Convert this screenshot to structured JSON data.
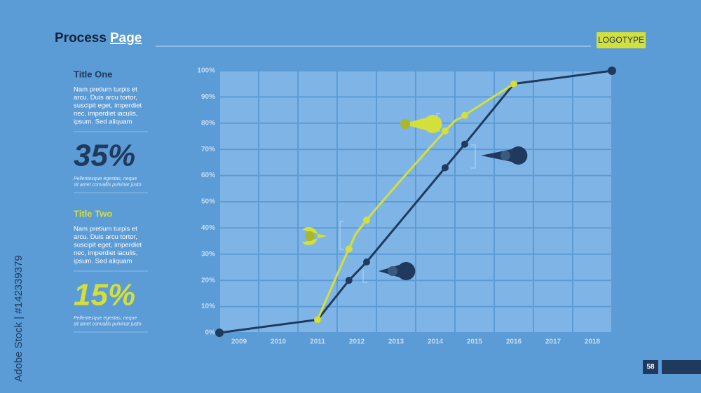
{
  "header": {
    "title": "Process",
    "title_accent": "Page",
    "logo": "LOGOTYPE"
  },
  "sidebar": [
    {
      "title": "Title One",
      "text": [
        "Nam pretium turpis et",
        "arcu. Duis arcu tortor,",
        "suscipit eget, imperdiet",
        "nec, imperdiet iaculis,",
        "ipsum. Sed aliquam"
      ],
      "stat": "35%",
      "caption": [
        "Pellentesque egestas, neque",
        "sit amet convallis pulvinar justo"
      ]
    },
    {
      "title": "Title Two",
      "text": [
        "Nam pretium turpis et",
        "arcu. Duis arcu tortor,",
        "suscipit eget, imperdiet",
        "nec, imperdiet iaculis,",
        "ipsum. Sed aliquam"
      ],
      "stat": "15%",
      "caption": [
        "Pellentesque egestas, neque",
        "sit amet convallis pulvinar justo"
      ]
    }
  ],
  "chart_data": {
    "type": "line",
    "x": [
      2008.5,
      2011,
      2011.8,
      2012.25,
      2014.25,
      2014.75,
      2016,
      2018.5
    ],
    "xlim": [
      2008.5,
      2018.5
    ],
    "xticks": [
      2009,
      2010,
      2011,
      2012,
      2013,
      2014,
      2015,
      2016,
      2017,
      2018
    ],
    "ylim": [
      0,
      100
    ],
    "yticks": [
      {
        "value": 0,
        "label": "0%"
      },
      {
        "value": 10,
        "label": "10%"
      },
      {
        "value": 20,
        "label": "20%"
      },
      {
        "value": 30,
        "label": "30%"
      },
      {
        "value": 40,
        "label": "40%"
      },
      {
        "value": 50,
        "label": "50%"
      },
      {
        "value": 60,
        "label": "60%"
      },
      {
        "value": 70,
        "label": "70%"
      },
      {
        "value": 80,
        "label": "80%"
      },
      {
        "value": 90,
        "label": "90%"
      },
      {
        "value": 100,
        "label": "100%"
      }
    ],
    "grid": true,
    "series": [
      {
        "color": "#1f3a5c",
        "values": [
          0,
          5,
          20,
          27,
          63,
          72,
          95,
          100
        ]
      },
      {
        "color": "#d3e03c",
        "values": [
          null,
          5,
          32,
          43,
          77,
          83,
          95,
          null
        ],
        "smooth": true
      }
    ]
  },
  "footer": {
    "page": "58",
    "watermark": "Adobe Stock | #142339379"
  }
}
